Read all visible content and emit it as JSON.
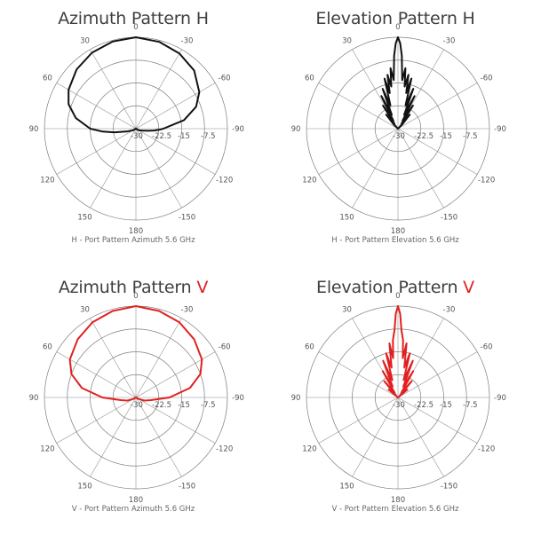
{
  "colors": {
    "h": "#111111",
    "v": "#e02020",
    "grid": "#7d7d7d"
  },
  "angle_labels": [
    "0",
    "-30",
    "-60",
    "-90",
    "-120",
    "-150",
    "180",
    "150",
    "120",
    "90",
    "60",
    "30"
  ],
  "db_labels": [
    "-30",
    "-22.5",
    "-15",
    "-7.5"
  ],
  "panels": [
    {
      "title_text": "Azimuth Pattern ",
      "title_hl": "H",
      "color_key": "h",
      "caption": "H - Port Pattern Azimuth 5.6 GHz"
    },
    {
      "title_text": "Elevation Pattern ",
      "title_hl": "H",
      "color_key": "h",
      "caption": "H - Port Pattern Elevation 5.6 GHz"
    },
    {
      "title_text": "Azimuth Pattern ",
      "title_hl": "V",
      "color_key": "v",
      "caption": "V - Port Pattern Azimuth 5.6 GHz"
    },
    {
      "title_text": "Elevation Pattern ",
      "title_hl": "V",
      "color_key": "v",
      "caption": "V - Port Pattern Elevation 5.6 GHz"
    }
  ],
  "chart_data": [
    {
      "type": "polar",
      "title": "Azimuth Pattern H",
      "caption": "H - Port Pattern Azimuth 5.6 GHz",
      "radial_range_db": [
        -30,
        0
      ],
      "radial_ticks_db": [
        -30,
        -22.5,
        -15,
        -7.5
      ],
      "angle_ticks_deg": [
        0,
        -30,
        -60,
        -90,
        -120,
        -150,
        180,
        150,
        120,
        90,
        60,
        30
      ],
      "series": [
        {
          "angles_deg": [
            -180,
            -150,
            -120,
            -108,
            -100,
            -96,
            -92,
            -90,
            -80,
            -70,
            -60,
            -45,
            -30,
            -15,
            0,
            15,
            30,
            45,
            60,
            70,
            80,
            90,
            95,
            100,
            108,
            120,
            150,
            180
          ],
          "gain_db": [
            -30,
            -30,
            -29,
            -28,
            -26,
            -24,
            -22,
            -21,
            -14,
            -9,
            -6,
            -3,
            -1.5,
            -0.5,
            0,
            -0.4,
            -1.2,
            -2.5,
            -4.5,
            -6.5,
            -10,
            -15,
            -19,
            -23,
            -27,
            -29,
            -30,
            -30
          ]
        }
      ]
    },
    {
      "type": "polar",
      "title": "Elevation Pattern H",
      "caption": "H - Port Pattern Elevation 5.6 GHz",
      "radial_range_db": [
        -30,
        0
      ],
      "radial_ticks_db": [
        -30,
        -22.5,
        -15,
        -7.5
      ],
      "angle_ticks_deg": [
        0,
        -30,
        -60,
        -90,
        -120,
        -150,
        180,
        150,
        120,
        90,
        60,
        30
      ],
      "series": [
        {
          "angles_deg": [
            -180,
            -120,
            -60,
            -45,
            -40,
            -36,
            -33,
            -30,
            -27,
            -24,
            -21,
            -18,
            -15,
            -13,
            -11,
            -9,
            -7,
            -5,
            -3,
            -1.5,
            0,
            1.5,
            3,
            5,
            7,
            9,
            11,
            13,
            15,
            18,
            21,
            24,
            27,
            30,
            33,
            36,
            40,
            45,
            60,
            120,
            180
          ],
          "gain_db": [
            -30,
            -30,
            -30,
            -28,
            -24,
            -28,
            -21,
            -27,
            -18,
            -25,
            -16,
            -22,
            -13,
            -18,
            -12,
            -16,
            -10,
            -14,
            -6,
            -2,
            0,
            -2,
            -6,
            -14,
            -10,
            -16,
            -12,
            -18,
            -13,
            -22,
            -16,
            -25,
            -18,
            -27,
            -21,
            -28,
            -24,
            -28,
            -30,
            -30,
            -30
          ]
        }
      ]
    },
    {
      "type": "polar",
      "title": "Azimuth Pattern V",
      "caption": "V - Port Pattern Azimuth 5.6 GHz",
      "radial_range_db": [
        -30,
        0
      ],
      "radial_ticks_db": [
        -30,
        -22.5,
        -15,
        -7.5
      ],
      "angle_ticks_deg": [
        0,
        -30,
        -60,
        -90,
        -120,
        -150,
        180,
        150,
        120,
        90,
        60,
        30
      ],
      "series": [
        {
          "angles_deg": [
            -180,
            -150,
            -120,
            -110,
            -100,
            -90,
            -80,
            -70,
            -60,
            -45,
            -30,
            -15,
            0,
            15,
            30,
            45,
            60,
            70,
            80,
            90,
            100,
            110,
            120,
            150,
            180
          ],
          "gain_db": [
            -30,
            -30,
            -29,
            -27,
            -25,
            -19,
            -12,
            -7.5,
            -5,
            -3,
            -1.5,
            -0.6,
            0,
            -0.6,
            -1.5,
            -3,
            -5,
            -7.5,
            -12,
            -19,
            -25,
            -27,
            -29,
            -30,
            -30
          ]
        }
      ]
    },
    {
      "type": "polar",
      "title": "Elevation Pattern V",
      "caption": "V - Port Pattern Elevation 5.6 GHz",
      "radial_range_db": [
        -30,
        0
      ],
      "radial_ticks_db": [
        -30,
        -22.5,
        -15,
        -7.5
      ],
      "angle_ticks_deg": [
        0,
        -30,
        -60,
        -90,
        -120,
        -150,
        180,
        150,
        120,
        90,
        60,
        30
      ],
      "series": [
        {
          "angles_deg": [
            -180,
            -120,
            -60,
            -50,
            -45,
            -40,
            -35,
            -30,
            -26,
            -22,
            -18,
            -15,
            -12,
            -9,
            -7,
            -5,
            -3,
            -1.5,
            0,
            1.5,
            3,
            5,
            7,
            9,
            12,
            15,
            18,
            22,
            26,
            30,
            35,
            40,
            45,
            50,
            60,
            120,
            180
          ],
          "gain_db": [
            -30,
            -30,
            -30,
            -26,
            -29,
            -23,
            -28,
            -20,
            -26,
            -17,
            -24,
            -15,
            -20,
            -12,
            -17,
            -11,
            -8,
            -2.5,
            0,
            -2.5,
            -8,
            -11,
            -17,
            -12,
            -20,
            -15,
            -24,
            -17,
            -26,
            -20,
            -28,
            -23,
            -29,
            -26,
            -30,
            -30,
            -30
          ]
        }
      ]
    }
  ]
}
